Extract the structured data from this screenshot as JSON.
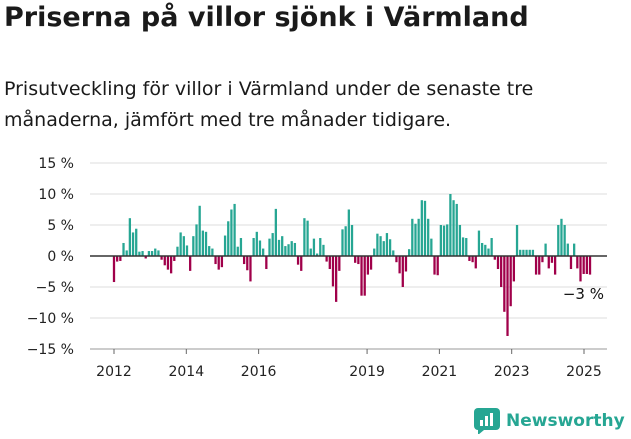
{
  "title": "Priserna på villor sjönk i Värmland",
  "subtitle": "Prisutveckling för villor i Värmland under de senaste tre månaderna, jämfört med tre månader tidigare.",
  "brand": {
    "name": "Newsworthy"
  },
  "colors": {
    "positive": "#26a693",
    "negative": "#a0004a",
    "zero_line": "#333333",
    "grid": "#dddddd",
    "brand": "#26a693"
  },
  "chart_data": {
    "type": "bar",
    "title": "Priserna på villor sjönk i Värmland",
    "xlabel": "",
    "ylabel": "",
    "ylim": [
      -15,
      15
    ],
    "yticks": [
      -15,
      -10,
      -5,
      0,
      5,
      10,
      15
    ],
    "ytick_labels": [
      "−15 %",
      "−10 %",
      "−5 %",
      "0 %",
      "5 %",
      "10 %",
      "15 %"
    ],
    "xticks": [
      2012,
      2014,
      2016,
      2019,
      2021,
      2023,
      2025
    ],
    "x_start": "2012-01",
    "x_end": "2025-03",
    "grid": true,
    "annotation": {
      "label": "−3 %",
      "x": "2025-03",
      "y": -3
    },
    "series": [
      {
        "values": [
          -4.2,
          -0.9,
          -0.8,
          2.1,
          0.9,
          6.1,
          3.8,
          4.4,
          0.7,
          0.8,
          -0.4,
          0.8,
          0.8,
          1.2,
          0.9,
          -0.6,
          -1.5,
          -2.2,
          -2.8,
          -0.8,
          1.5,
          3.8,
          3.2,
          1.7,
          -2.4,
          3.2,
          5.1,
          8.1,
          4.1,
          3.9,
          1.6,
          1.2,
          -1.3,
          -2.2,
          -1.8,
          3.3,
          5.6,
          7.5,
          8.4,
          1.5,
          2.9,
          -1.3,
          -2.3,
          -4.1,
          2.9,
          3.9,
          2.5,
          1.2,
          -2.1,
          2.8,
          3.7,
          7.6,
          2.6,
          3.2,
          1.6,
          1.9,
          2.4,
          2.1,
          -1.4,
          -2.4,
          6.1,
          5.7,
          1.2,
          2.8,
          0.4,
          2.9,
          1.8,
          -0.9,
          -2.1,
          -4.9,
          -7.4,
          -2.4,
          4.3,
          4.8,
          7.5,
          5.0,
          -1.1,
          -1.3,
          -6.4,
          -6.4,
          -3.0,
          -2.2,
          1.2,
          3.6,
          3.2,
          2.4,
          3.7,
          2.7,
          0.9,
          -1.0,
          -2.8,
          -5.0,
          -2.5,
          1.1,
          6.0,
          5.2,
          6.0,
          9.0,
          8.9,
          6.0,
          2.8,
          -3.0,
          -3.1,
          5.0,
          4.9,
          5.1,
          10.0,
          9.0,
          8.4,
          5.0,
          3.0,
          2.9,
          -0.8,
          -1.0,
          -2.0,
          4.1,
          2.1,
          1.8,
          1.2,
          2.9,
          -0.6,
          -2.1,
          -5.0,
          -9.0,
          -12.9,
          -8.1,
          -4.1,
          5.0,
          1.0,
          1.0,
          1.0,
          1.0,
          1.0,
          -3.0,
          -3.0,
          -1.0,
          2.0,
          -2.0,
          -1.1,
          -3.0,
          5.0,
          6.0,
          5.0,
          2.0,
          -2.1,
          2.0,
          -2.0,
          -4.1,
          -2.9,
          -2.9,
          -3.0
        ]
      }
    ]
  }
}
